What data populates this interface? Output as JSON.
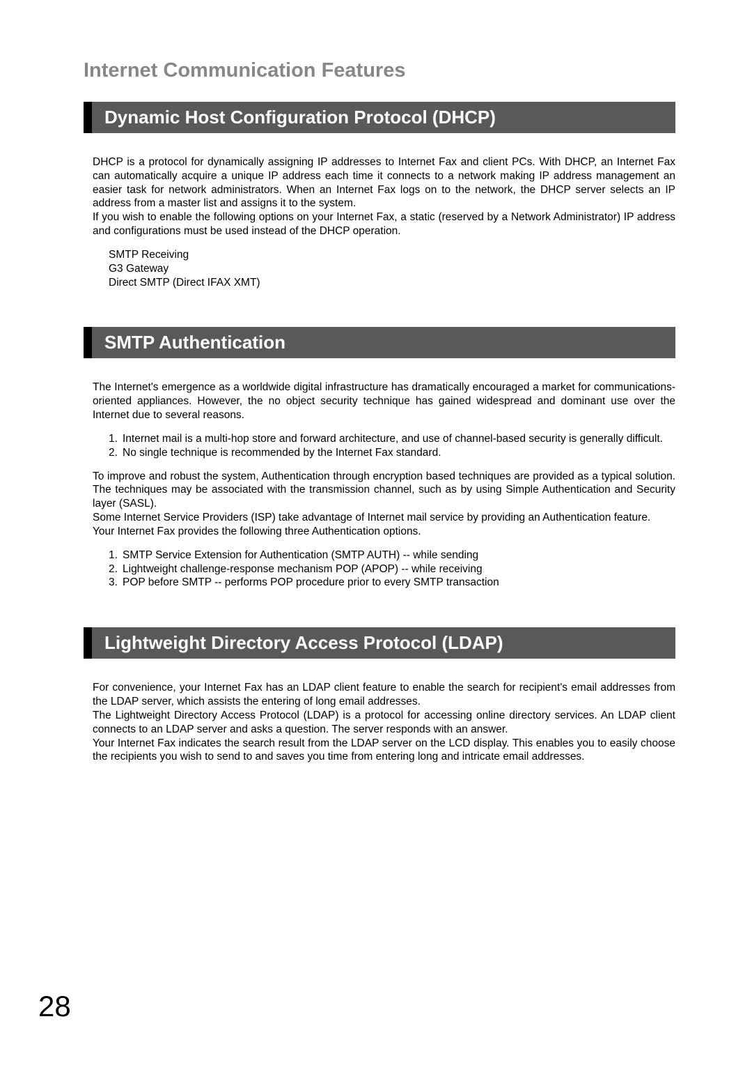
{
  "page": {
    "title": "Internet Communication Features",
    "section1": {
      "heading": "Dynamic Host Configuration Protocol (DHCP)",
      "para1": "DHCP is a protocol for dynamically assigning IP addresses to Internet Fax and client PCs. With DHCP, an Internet Fax can automatically acquire a unique IP address each time it connects to a network making IP address management an easier task for network administrators. When an Internet Fax logs on to the network, the DHCP server selects an IP address from a master list and assigns it to the system.",
      "para2": "If you wish to enable the following options on your Internet Fax, a static (reserved by a Network Administrator) IP address and configurations must be used instead of the DHCP operation.",
      "list": [
        "SMTP Receiving",
        "G3 Gateway",
        "Direct SMTP (Direct IFAX XMT)"
      ]
    },
    "section2": {
      "heading": "SMTP Authentication",
      "para1": "The Internet's emergence as a worldwide digital infrastructure has dramatically encouraged a market for communications-oriented appliances. However, the no object security technique has gained widespread and dominant use over the Internet due to several reasons.",
      "numlist1": [
        "Internet mail is a multi-hop store and forward architecture, and use of channel-based security is generally difficult.",
        "No single technique is recommended by the Internet Fax standard."
      ],
      "para2": "To improve and robust the system, Authentication through encryption based techniques are provided as a typical solution. The techniques may be associated with the transmission channel, such as by using Simple Authentication and Security layer (SASL).",
      "para3": "Some Internet Service Providers (ISP) take advantage of Internet mail service by providing an Authentication feature.",
      "para4": "Your Internet Fax provides the following three Authentication options.",
      "numlist2": [
        "SMTP Service Extension for Authentication (SMTP AUTH) -- while sending",
        "Lightweight challenge-response mechanism POP (APOP) -- while receiving",
        "POP before SMTP -- performs POP procedure prior to every SMTP transaction"
      ]
    },
    "section3": {
      "heading": "Lightweight Directory Access Protocol (LDAP)",
      "para1": "For convenience, your Internet Fax has an LDAP client feature to enable the search for recipient's email addresses from the LDAP server, which assists the entering of long email addresses.",
      "para2": "The Lightweight Directory Access Protocol (LDAP) is a protocol for accessing online directory services. An LDAP client connects to an LDAP server and asks a question. The server responds with an answer.",
      "para3": "Your Internet Fax indicates the search result from the LDAP server on the LCD display. This enables you to easily choose the recipients you wish to send to and saves you time from entering long and intricate email addresses."
    },
    "pageNumber": "28"
  },
  "colors": {
    "title_gray": "#878787",
    "bar_bg": "#58595b",
    "bar_border": "#000000",
    "text": "#000000",
    "bg": "#ffffff"
  },
  "typography": {
    "title_size": 29,
    "heading_size": 26,
    "body_size": 15.5,
    "pagenum_size": 42
  }
}
